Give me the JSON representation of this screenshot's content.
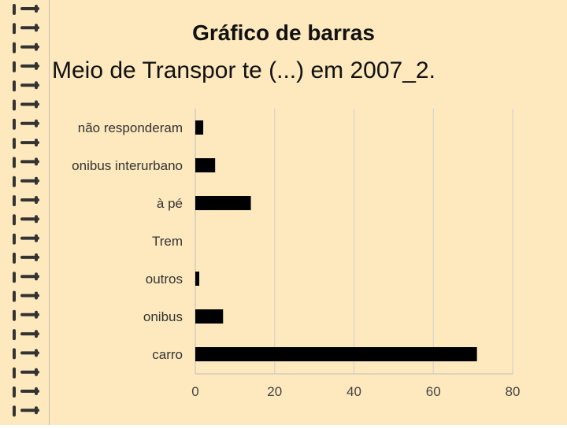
{
  "title": "Gráfico de barras",
  "subtitle": "Meio de Transpor te (...) em 2007_2.",
  "colors": {
    "background": "#fde9bd",
    "bar": "#000000",
    "grid": "#d0d0d0",
    "ring": "#333333"
  },
  "chart_data": {
    "type": "bar",
    "orientation": "horizontal",
    "categories": [
      "não responderam",
      "onibus interurbano",
      "à pé",
      "Trem",
      "outros",
      "onibus",
      "carro"
    ],
    "values": [
      2,
      5,
      14,
      0,
      1,
      7,
      71
    ],
    "xlim": [
      0,
      80
    ],
    "xticks": [
      0,
      20,
      40,
      60,
      80
    ],
    "grid": true,
    "legend": "none"
  }
}
